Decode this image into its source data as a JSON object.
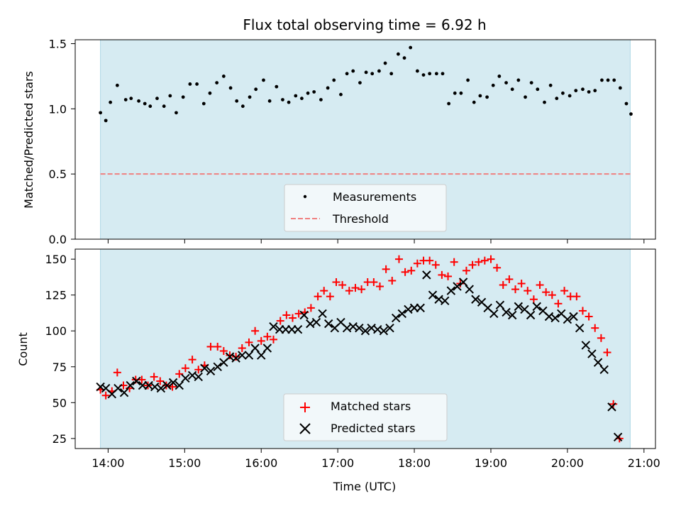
{
  "chart_data": {
    "title": "Flux total observing time = 6.92 h",
    "xlabel": "Time (UTC)",
    "x_ticks": [
      "14:00",
      "15:00",
      "16:00",
      "17:00",
      "18:00",
      "19:00",
      "20:00",
      "21:00"
    ],
    "x_range_hours": [
      13.57,
      21.15
    ],
    "shaded_span_hours": [
      13.9,
      20.82
    ],
    "colors": {
      "shade": "#add8e6",
      "measure": "#000000",
      "threshold": "#f08080",
      "matched": "#ff0000",
      "predicted": "#000000"
    },
    "top": {
      "type": "scatter",
      "ylabel": "Matched/Predicted stars",
      "ylim": [
        0,
        1.53
      ],
      "y_ticks": [
        0.0,
        0.5,
        1.0,
        1.5
      ],
      "threshold": 0.5,
      "legend": {
        "placement": "lower-center",
        "entries": [
          "Measurements",
          "Threshold"
        ]
      },
      "points": [
        [
          13.9,
          0.97
        ],
        [
          13.97,
          0.91
        ],
        [
          14.03,
          1.05
        ],
        [
          14.12,
          1.18
        ],
        [
          14.23,
          1.07
        ],
        [
          14.3,
          1.08
        ],
        [
          14.4,
          1.06
        ],
        [
          14.48,
          1.04
        ],
        [
          14.55,
          1.02
        ],
        [
          14.64,
          1.08
        ],
        [
          14.73,
          1.02
        ],
        [
          14.81,
          1.1
        ],
        [
          14.89,
          0.97
        ],
        [
          14.98,
          1.09
        ],
        [
          15.07,
          1.19
        ],
        [
          15.16,
          1.19
        ],
        [
          15.25,
          1.04
        ],
        [
          15.33,
          1.12
        ],
        [
          15.42,
          1.2
        ],
        [
          15.51,
          1.25
        ],
        [
          15.6,
          1.16
        ],
        [
          15.68,
          1.06
        ],
        [
          15.76,
          1.02
        ],
        [
          15.85,
          1.09
        ],
        [
          15.93,
          1.15
        ],
        [
          16.03,
          1.22
        ],
        [
          16.11,
          1.06
        ],
        [
          16.2,
          1.17
        ],
        [
          16.28,
          1.07
        ],
        [
          16.36,
          1.05
        ],
        [
          16.45,
          1.1
        ],
        [
          16.53,
          1.08
        ],
        [
          16.61,
          1.12
        ],
        [
          16.69,
          1.13
        ],
        [
          16.78,
          1.07
        ],
        [
          16.87,
          1.16
        ],
        [
          16.95,
          1.22
        ],
        [
          17.04,
          1.11
        ],
        [
          17.12,
          1.27
        ],
        [
          17.2,
          1.29
        ],
        [
          17.29,
          1.2
        ],
        [
          17.37,
          1.28
        ],
        [
          17.45,
          1.27
        ],
        [
          17.54,
          1.29
        ],
        [
          17.62,
          1.35
        ],
        [
          17.7,
          1.27
        ],
        [
          17.79,
          1.42
        ],
        [
          17.87,
          1.39
        ],
        [
          17.95,
          1.47
        ],
        [
          18.04,
          1.29
        ],
        [
          18.12,
          1.26
        ],
        [
          18.2,
          1.27
        ],
        [
          18.29,
          1.27
        ],
        [
          18.37,
          1.27
        ],
        [
          18.45,
          1.04
        ],
        [
          18.53,
          1.12
        ],
        [
          18.61,
          1.12
        ],
        [
          18.7,
          1.22
        ],
        [
          18.78,
          1.05
        ],
        [
          18.86,
          1.1
        ],
        [
          18.95,
          1.09
        ],
        [
          19.03,
          1.18
        ],
        [
          19.11,
          1.25
        ],
        [
          19.2,
          1.2
        ],
        [
          19.28,
          1.15
        ],
        [
          19.36,
          1.22
        ],
        [
          19.45,
          1.09
        ],
        [
          19.53,
          1.2
        ],
        [
          19.61,
          1.15
        ],
        [
          19.7,
          1.05
        ],
        [
          19.78,
          1.18
        ],
        [
          19.86,
          1.08
        ],
        [
          19.94,
          1.12
        ],
        [
          20.03,
          1.1
        ],
        [
          20.11,
          1.14
        ],
        [
          20.2,
          1.15
        ],
        [
          20.28,
          1.13
        ],
        [
          20.36,
          1.14
        ],
        [
          20.45,
          1.22
        ],
        [
          20.53,
          1.22
        ],
        [
          20.61,
          1.22
        ],
        [
          20.69,
          1.16
        ],
        [
          20.77,
          1.04
        ],
        [
          20.83,
          0.96
        ]
      ]
    },
    "bottom": {
      "type": "scatter",
      "ylabel": "Count",
      "ylim": [
        18,
        157
      ],
      "y_ticks": [
        25,
        50,
        75,
        100,
        125,
        150
      ],
      "legend": {
        "placement": "lower-center",
        "entries": [
          "Matched stars",
          "Predicted stars"
        ]
      },
      "series": [
        {
          "name": "Matched stars",
          "marker": "+",
          "points": [
            [
              13.9,
              59
            ],
            [
              13.97,
              55
            ],
            [
              14.05,
              58
            ],
            [
              14.12,
              71
            ],
            [
              14.2,
              62
            ],
            [
              14.28,
              60
            ],
            [
              14.36,
              66
            ],
            [
              14.44,
              66
            ],
            [
              14.52,
              62
            ],
            [
              14.6,
              68
            ],
            [
              14.68,
              65
            ],
            [
              14.76,
              62
            ],
            [
              14.84,
              61
            ],
            [
              14.93,
              70
            ],
            [
              15.01,
              74
            ],
            [
              15.1,
              80
            ],
            [
              15.18,
              73
            ],
            [
              15.26,
              76
            ],
            [
              15.34,
              89
            ],
            [
              15.43,
              89
            ],
            [
              15.51,
              86
            ],
            [
              15.59,
              83
            ],
            [
              15.67,
              82
            ],
            [
              15.75,
              88
            ],
            [
              15.84,
              92
            ],
            [
              15.92,
              100
            ],
            [
              16.0,
              93
            ],
            [
              16.08,
              96
            ],
            [
              16.16,
              94
            ],
            [
              16.25,
              107
            ],
            [
              16.33,
              111
            ],
            [
              16.41,
              109
            ],
            [
              16.49,
              112
            ],
            [
              16.57,
              113
            ],
            [
              16.65,
              116
            ],
            [
              16.74,
              124
            ],
            [
              16.82,
              128
            ],
            [
              16.9,
              124
            ],
            [
              16.98,
              134
            ],
            [
              17.06,
              132
            ],
            [
              17.15,
              128
            ],
            [
              17.23,
              130
            ],
            [
              17.31,
              129
            ],
            [
              17.39,
              134
            ],
            [
              17.47,
              134
            ],
            [
              17.55,
              131
            ],
            [
              17.63,
              143
            ],
            [
              17.71,
              135
            ],
            [
              17.8,
              150
            ],
            [
              17.88,
              141
            ],
            [
              17.96,
              142
            ],
            [
              18.04,
              147
            ],
            [
              18.12,
              149
            ],
            [
              18.2,
              149
            ],
            [
              18.28,
              146
            ],
            [
              18.36,
              139
            ],
            [
              18.44,
              138
            ],
            [
              18.52,
              148
            ],
            [
              18.6,
              133
            ],
            [
              18.68,
              142
            ],
            [
              18.76,
              146
            ],
            [
              18.84,
              148
            ],
            [
              18.92,
              149
            ],
            [
              19.0,
              150
            ],
            [
              19.08,
              144
            ],
            [
              19.16,
              132
            ],
            [
              19.24,
              136
            ],
            [
              19.32,
              129
            ],
            [
              19.4,
              133
            ],
            [
              19.48,
              128
            ],
            [
              19.56,
              122
            ],
            [
              19.64,
              132
            ],
            [
              19.72,
              127
            ],
            [
              19.8,
              125
            ],
            [
              19.88,
              119
            ],
            [
              19.96,
              128
            ],
            [
              20.04,
              124
            ],
            [
              20.12,
              124
            ],
            [
              20.2,
              114
            ],
            [
              20.28,
              110
            ],
            [
              20.36,
              102
            ],
            [
              20.44,
              95
            ],
            [
              20.52,
              85
            ],
            [
              20.6,
              49
            ],
            [
              20.68,
              25
            ]
          ]
        },
        {
          "name": "Predicted stars",
          "marker": "x",
          "points": [
            [
              13.9,
              61
            ],
            [
              13.97,
              60
            ],
            [
              14.05,
              56
            ],
            [
              14.13,
              60
            ],
            [
              14.21,
              57
            ],
            [
              14.29,
              62
            ],
            [
              14.37,
              65
            ],
            [
              14.45,
              62
            ],
            [
              14.53,
              62
            ],
            [
              14.61,
              61
            ],
            [
              14.69,
              60
            ],
            [
              14.77,
              62
            ],
            [
              14.85,
              64
            ],
            [
              14.93,
              62
            ],
            [
              15.01,
              67
            ],
            [
              15.1,
              69
            ],
            [
              15.18,
              68
            ],
            [
              15.26,
              74
            ],
            [
              15.34,
              72
            ],
            [
              15.43,
              75
            ],
            [
              15.51,
              78
            ],
            [
              15.59,
              82
            ],
            [
              15.67,
              81
            ],
            [
              15.75,
              83
            ],
            [
              15.84,
              83
            ],
            [
              15.92,
              88
            ],
            [
              16.0,
              83
            ],
            [
              16.08,
              88
            ],
            [
              16.16,
              103
            ],
            [
              16.24,
              101
            ],
            [
              16.32,
              101
            ],
            [
              16.4,
              101
            ],
            [
              16.48,
              101
            ],
            [
              16.56,
              111
            ],
            [
              16.64,
              105
            ],
            [
              16.72,
              106
            ],
            [
              16.8,
              112
            ],
            [
              16.88,
              105
            ],
            [
              16.96,
              102
            ],
            [
              17.04,
              106
            ],
            [
              17.12,
              102
            ],
            [
              17.2,
              103
            ],
            [
              17.28,
              102
            ],
            [
              17.36,
              100
            ],
            [
              17.44,
              102
            ],
            [
              17.52,
              101
            ],
            [
              17.6,
              100
            ],
            [
              17.68,
              102
            ],
            [
              17.76,
              109
            ],
            [
              17.84,
              112
            ],
            [
              17.92,
              115
            ],
            [
              18.0,
              116
            ],
            [
              18.08,
              116
            ],
            [
              18.16,
              139
            ],
            [
              18.24,
              125
            ],
            [
              18.32,
              122
            ],
            [
              18.4,
              121
            ],
            [
              18.48,
              128
            ],
            [
              18.56,
              131
            ],
            [
              18.64,
              134
            ],
            [
              18.72,
              129
            ],
            [
              18.8,
              122
            ],
            [
              18.88,
              120
            ],
            [
              18.96,
              116
            ],
            [
              19.04,
              112
            ],
            [
              19.12,
              118
            ],
            [
              19.2,
              113
            ],
            [
              19.28,
              111
            ],
            [
              19.36,
              117
            ],
            [
              19.44,
              115
            ],
            [
              19.52,
              111
            ],
            [
              19.6,
              117
            ],
            [
              19.68,
              114
            ],
            [
              19.76,
              110
            ],
            [
              19.84,
              109
            ],
            [
              19.92,
              112
            ],
            [
              20.0,
              108
            ],
            [
              20.08,
              110
            ],
            [
              20.16,
              102
            ],
            [
              20.24,
              90
            ],
            [
              20.32,
              84
            ],
            [
              20.4,
              78
            ],
            [
              20.48,
              73
            ],
            [
              20.58,
              47
            ],
            [
              20.66,
              26
            ]
          ]
        }
      ]
    }
  }
}
